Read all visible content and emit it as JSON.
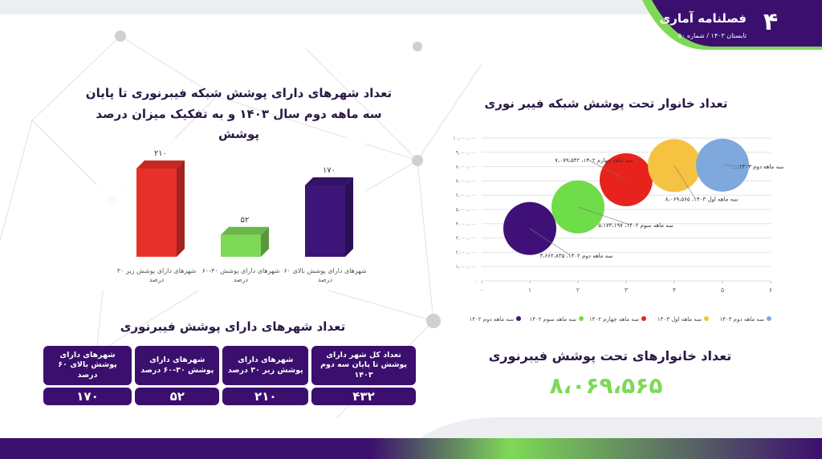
{
  "header": {
    "title": "فصلنامه آماری",
    "subtitle": "تابستان ۱۴۰۳ / شماره ۵۰",
    "page": "۴"
  },
  "chart_data": [
    {
      "type": "bar",
      "title": "تعداد شهرهای دارای پوشش شبکه فیبرنوری تا پایان سه ماهه دوم سال ۱۴۰۳ و به تفکیک میزان درصد پوشش",
      "categories": [
        "شهرهای دارای پوشش زیر ۳۰ درصد",
        "شهرهای دارای پوشش ۳۰-۶۰ درصد",
        "شهرهای دارای پوشش بالای ۶۰ درصد"
      ],
      "values": [
        210,
        52,
        170
      ],
      "value_labels": [
        "۲۱۰",
        "۵۲",
        "۱۷۰"
      ],
      "colors": [
        "#e8302a",
        "#7ed957",
        "#3d1578"
      ]
    },
    {
      "type": "bubble",
      "title": "تعداد خانوار تحت پوشش شبکه فیبر نوری",
      "xlim": [
        0,
        6
      ],
      "xticks": [
        {
          "value": 0,
          "label": "۰"
        },
        {
          "value": 1,
          "label": "۱"
        },
        {
          "value": 2,
          "label": "۲"
        },
        {
          "value": 3,
          "label": "۳"
        },
        {
          "value": 4,
          "label": "۴"
        },
        {
          "value": 5,
          "label": "۵"
        },
        {
          "value": 6,
          "label": "۶"
        }
      ],
      "ylim": [
        0,
        10000000
      ],
      "yticks": [
        {
          "value": 0,
          "label": "۰"
        },
        {
          "value": 1000000,
          "label": "۱,۰۰۰,۰۰۰"
        },
        {
          "value": 2000000,
          "label": "۲,۰۰۰,۰۰۰"
        },
        {
          "value": 3000000,
          "label": "۳,۰۰۰,۰۰۰"
        },
        {
          "value": 4000000,
          "label": "۴,۰۰۰,۰۰۰"
        },
        {
          "value": 5000000,
          "label": "۵,۰۰۰,۰۰۰"
        },
        {
          "value": 6000000,
          "label": "۶,۰۰۰,۰۰۰"
        },
        {
          "value": 7000000,
          "label": "۷,۰۰۰,۰۰۰"
        },
        {
          "value": 8000000,
          "label": "۸,۰۰۰,۰۰۰"
        },
        {
          "value": 9000000,
          "label": "۹,۰۰۰,۰۰۰"
        },
        {
          "value": 10000000,
          "label": "۱۰,۰۰۰,۰۰۰"
        }
      ],
      "grid": true,
      "series": [
        {
          "name": "سه ماهه دوم ۱۴۰۲",
          "color": "#3f1178",
          "x": [
            1
          ],
          "values": [
            3662835
          ],
          "value_labels": [
            "سه ماهه دوم ۱۴۰۲، ۳،۶۶۲،۸۳۵"
          ]
        },
        {
          "name": "سه ماهه سوم ۱۴۰۲",
          "color": "#6fdc4a",
          "x": [
            2
          ],
          "values": [
            5173197
          ],
          "value_labels": [
            "سه ماهه سوم ۱۴۰۲، ۵،۱۷۳،۱۹۷"
          ]
        },
        {
          "name": "سه ماهه چهارم ۱۴۰۲",
          "color": "#e8231d",
          "x": [
            3
          ],
          "values": [
            7079542
          ],
          "value_labels": [
            "سه ماهه چهارم ۱۴۰۲، ۷،۰۷۹،۵۴۲"
          ]
        },
        {
          "name": "سه ماهه اول ۱۴۰۳",
          "color": "#f5c242",
          "x": [
            4
          ],
          "values": [
            8069565
          ],
          "value_labels": [
            "سه ماهه اول ۱۴۰۳، ۸،۰۶۹،۵۶۵"
          ]
        },
        {
          "name": "سه ماهه دوم ۱۴۰۳",
          "color": "#7fa8dc",
          "x": [
            5
          ],
          "values": [
            8100000
          ],
          "value_labels": [
            "سه ماهه دوم ۱۴۰۳،..."
          ]
        }
      ]
    }
  ],
  "table": {
    "title": "تعداد شهرهای دارای پوشش فیبرنوری",
    "headers": [
      "تعداد کل شهر دارای پوشش تا پایان سه دوم ۱۴۰۳",
      "شهرهای دارای پوشش زیر ۳۰ درصد",
      "شهرهای دارای پوشش ۳۰-۶۰ درصد",
      "شهرهای دارای پوشش بالای ۶۰ درصد"
    ],
    "rows": [
      [
        "۴۳۲",
        "۲۱۰",
        "۵۲",
        "۱۷۰"
      ]
    ]
  },
  "kpi": {
    "title": "تعداد خانوارهای تحت پوشش فیبرنوری",
    "value": "۸،۰۶۹،۵۶۵"
  }
}
